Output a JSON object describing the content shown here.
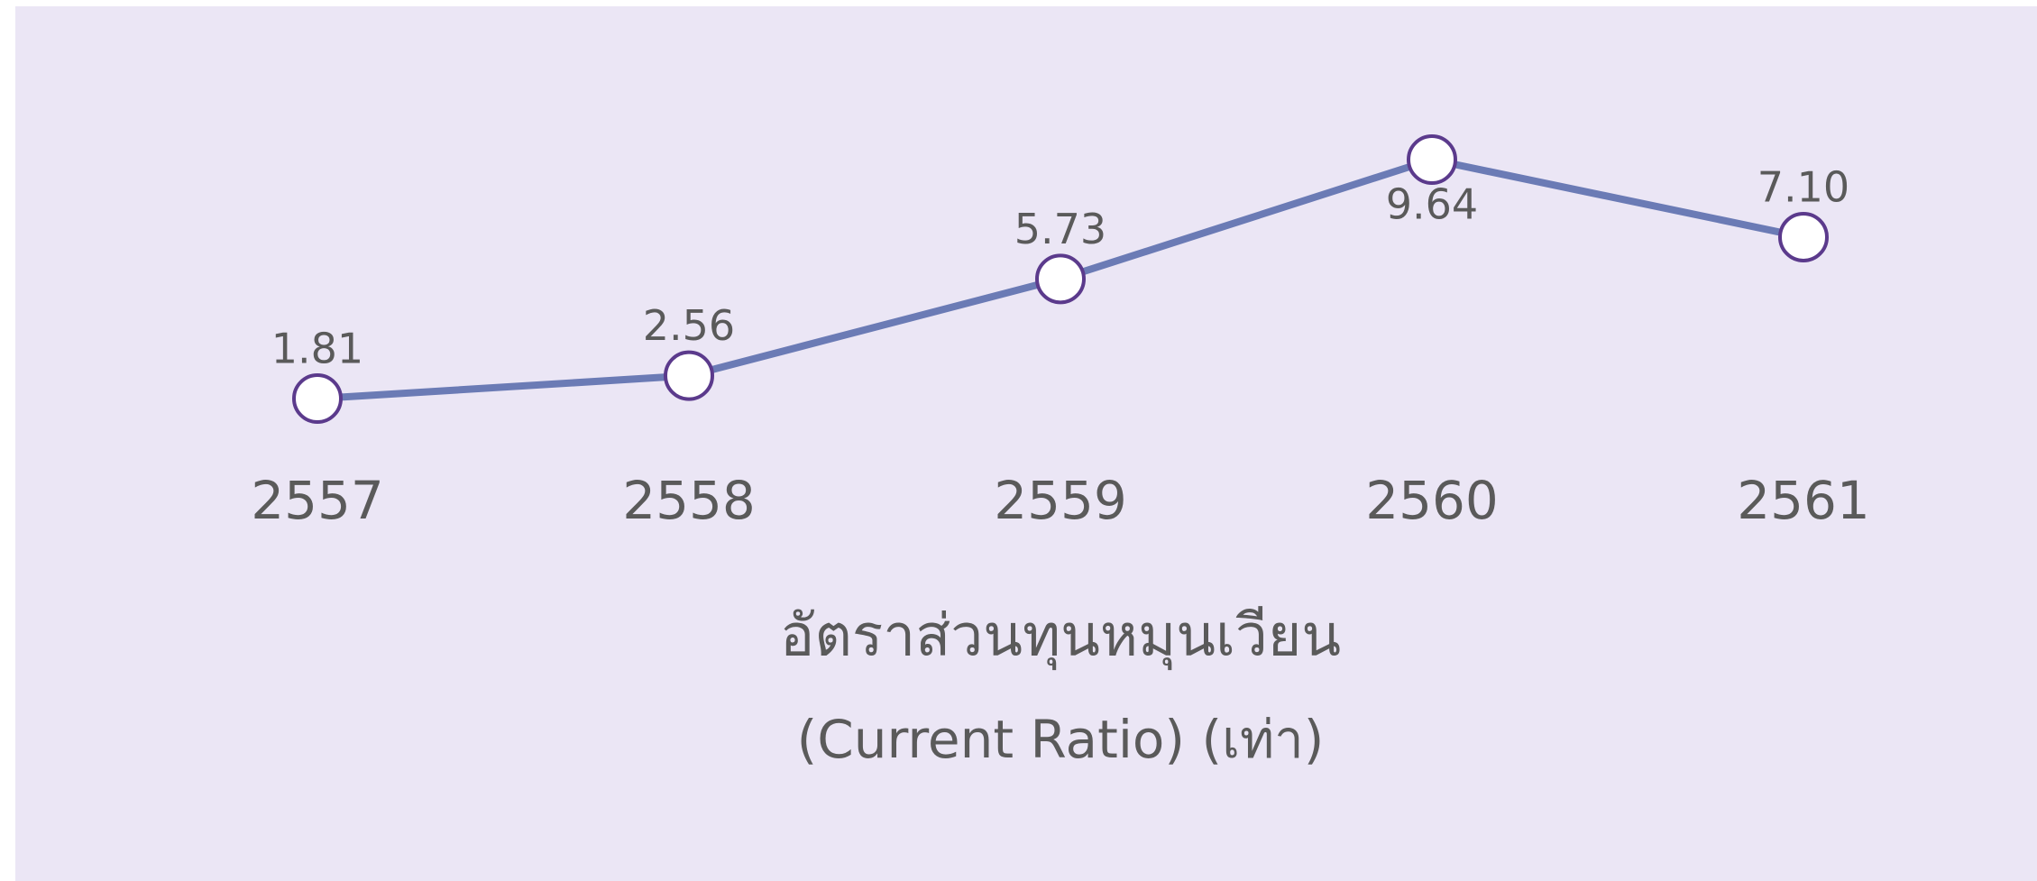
{
  "chart_data": {
    "type": "line",
    "title": "อัตราส่วนทุนหมุนเวียน",
    "subtitle": "(Current Ratio) (เท่า)",
    "categories": [
      "2557",
      "2558",
      "2559",
      "2560",
      "2561"
    ],
    "series": [
      {
        "name": "Current Ratio",
        "color": "#6b7bb5",
        "values": [
          1.81,
          2.56,
          5.73,
          9.64,
          7.1
        ],
        "value_labels": [
          "1.81",
          "2.56",
          "5.73",
          "9.64",
          "7.10"
        ]
      }
    ]
  }
}
